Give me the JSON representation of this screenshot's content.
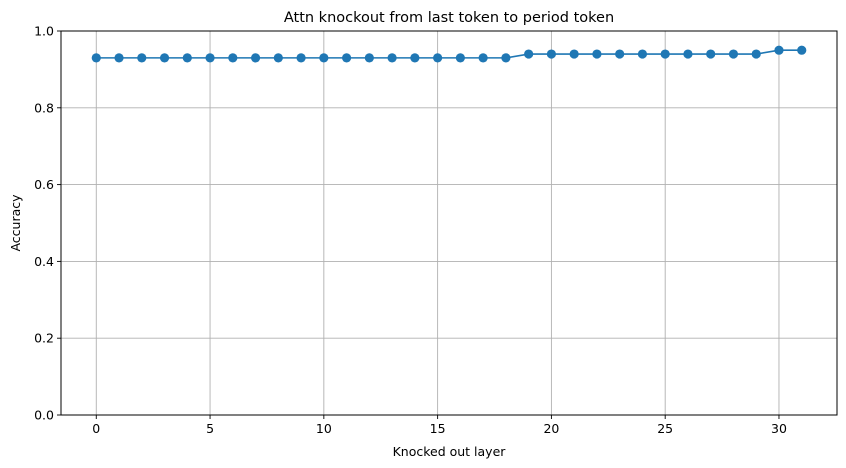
{
  "chart_data": {
    "type": "line",
    "title": "Attn knockout from last token to period token",
    "xlabel": "Knocked out layer",
    "ylabel": "Accuracy",
    "xlim": [
      -1.55,
      32.55
    ],
    "ylim": [
      0.0,
      1.0
    ],
    "xticks": [
      0,
      5,
      10,
      15,
      20,
      25,
      30
    ],
    "yticks": [
      0.0,
      0.2,
      0.4,
      0.6,
      0.8,
      1.0
    ],
    "xtick_labels": [
      "0",
      "5",
      "10",
      "15",
      "20",
      "25",
      "30"
    ],
    "ytick_labels": [
      "0.0",
      "0.2",
      "0.4",
      "0.6",
      "0.8",
      "1.0"
    ],
    "grid": true,
    "marker": "circle",
    "color": "#1f77b4",
    "series": [
      {
        "x": [
          0,
          1,
          2,
          3,
          4,
          5,
          6,
          7,
          8,
          9,
          10,
          11,
          12,
          13,
          14,
          15,
          16,
          17,
          18,
          19,
          20,
          21,
          22,
          23,
          24,
          25,
          26,
          27,
          28,
          29,
          30,
          31
        ],
        "values": [
          0.93,
          0.93,
          0.93,
          0.93,
          0.93,
          0.93,
          0.93,
          0.93,
          0.93,
          0.93,
          0.93,
          0.93,
          0.93,
          0.93,
          0.93,
          0.93,
          0.93,
          0.93,
          0.93,
          0.94,
          0.94,
          0.94,
          0.94,
          0.94,
          0.94,
          0.94,
          0.94,
          0.94,
          0.94,
          0.94,
          0.95,
          0.95
        ]
      }
    ]
  }
}
